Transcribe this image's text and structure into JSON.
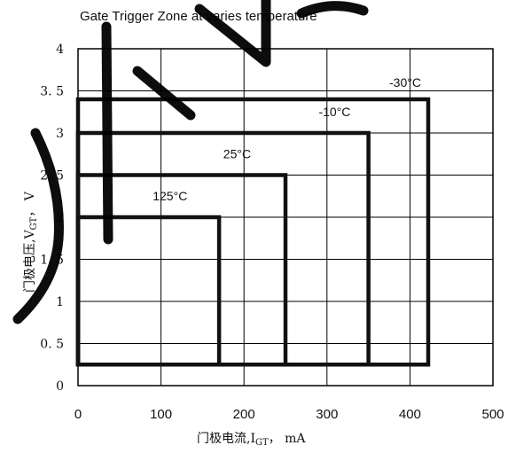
{
  "chart_data": {
    "type": "line",
    "title": "Gate Trigger Zone at varies temperature",
    "xlabel_main": "门极电流,I",
    "xlabel_sub": "GT",
    "xlabel_unit": "， mA",
    "ylabel_main": "门极电压,V",
    "ylabel_sub": "GT",
    "ylabel_unit": "， V",
    "xlim": [
      0,
      500
    ],
    "ylim": [
      0,
      4
    ],
    "x_ticks": [
      0,
      100,
      200,
      300,
      400,
      500
    ],
    "y_ticks": [
      0,
      0.5,
      1,
      1.5,
      2,
      2.5,
      3,
      3.5,
      4
    ],
    "x_tick_labels": [
      "0",
      "100",
      "200",
      "300",
      "400",
      "500"
    ],
    "y_tick_labels": [
      "0",
      "0. 5",
      "1",
      "1. 5",
      "2",
      "2. 5",
      "3",
      "3. 5",
      "4"
    ],
    "grid": true,
    "series": [
      {
        "name": "-30°C",
        "x_min": 0,
        "x_max": 422,
        "y_min": 0.25,
        "y_max": 3.4,
        "label_x": 375,
        "label_y": 3.55
      },
      {
        "name": "-10°C",
        "x_min": 0,
        "x_max": 350,
        "y_min": 0.25,
        "y_max": 3.0,
        "label_x": 290,
        "label_y": 3.2
      },
      {
        "name": "25°C",
        "x_min": 0,
        "x_max": 250,
        "y_min": 0.25,
        "y_max": 2.5,
        "label_x": 175,
        "label_y": 2.7
      },
      {
        "name": "125°C",
        "x_min": 0,
        "x_max": 170,
        "y_min": 0.25,
        "y_max": 2.0,
        "label_x": 90,
        "label_y": 2.2
      }
    ]
  },
  "colors": {
    "zone": "#111111",
    "grid": "#000000",
    "watermark": "#000000"
  }
}
